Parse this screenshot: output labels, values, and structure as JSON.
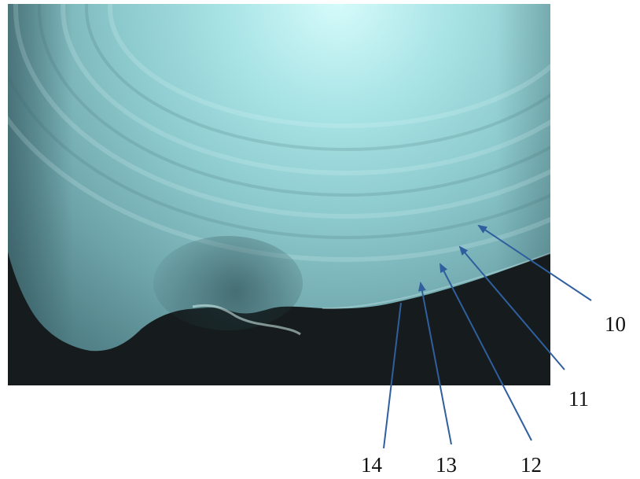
{
  "figure": {
    "description_free": true,
    "arrow_color": "#2f5f9e",
    "labels": [
      {
        "id": "10",
        "text": "10"
      },
      {
        "id": "11",
        "text": "11"
      },
      {
        "id": "12",
        "text": "12"
      },
      {
        "id": "13",
        "text": "13"
      },
      {
        "id": "14",
        "text": "14"
      }
    ]
  }
}
